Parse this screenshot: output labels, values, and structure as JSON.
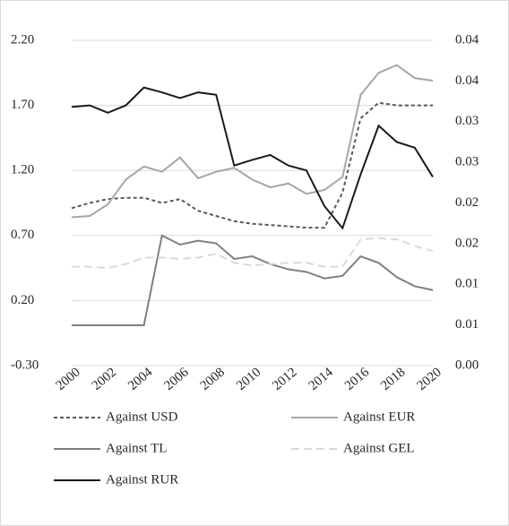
{
  "chart_data": {
    "type": "line",
    "categories": [
      "2000",
      null,
      "2002",
      null,
      "2004",
      null,
      "2006",
      null,
      "2008",
      null,
      "2010",
      null,
      "2012",
      null,
      "2014",
      null,
      "2016",
      null,
      "2018",
      null,
      "2020"
    ],
    "ylim": [
      -0.3,
      2.2
    ],
    "yticks": [
      {
        "value": 2.2,
        "label": "2.20"
      },
      {
        "value": 1.7,
        "label": "1.70"
      },
      {
        "value": 1.2,
        "label": "1.20"
      },
      {
        "value": 0.7,
        "label": "0.70"
      },
      {
        "value": 0.2,
        "label": "0.20"
      },
      {
        "value": -0.3,
        "label": "-0.30"
      }
    ],
    "y2lim": [
      0,
      0.04
    ],
    "y2ticks": [
      {
        "value": 0.04,
        "label": "0.04"
      },
      {
        "value": 0.035,
        "label": "0.04"
      },
      {
        "value": 0.03,
        "label": "0.03"
      },
      {
        "value": 0.025,
        "label": "0.03"
      },
      {
        "value": 0.02,
        "label": "0.02"
      },
      {
        "value": 0.015,
        "label": "0.02"
      },
      {
        "value": 0.01,
        "label": "0.01"
      },
      {
        "value": 0.005,
        "label": "0.01"
      },
      {
        "value": 0,
        "label": "0.00"
      }
    ],
    "grid": true,
    "legend": "bottom",
    "series": [
      {
        "name": "Against USD",
        "color": "#595959",
        "dash": "4,3",
        "values": [
          0.91,
          0.95,
          0.98,
          0.99,
          0.99,
          0.95,
          0.98,
          0.89,
          0.85,
          0.81,
          0.79,
          0.78,
          0.77,
          0.76,
          0.76,
          1.03,
          1.6,
          1.72,
          1.7,
          1.7,
          1.7
        ]
      },
      {
        "name": "Against EUR",
        "color": "#a6a6a6",
        "values": [
          0.84,
          0.85,
          0.94,
          1.13,
          1.23,
          1.19,
          1.3,
          1.14,
          1.19,
          1.22,
          1.13,
          1.07,
          1.1,
          1.02,
          1.05,
          1.15,
          1.78,
          1.95,
          2.01,
          1.91,
          1.89
        ]
      },
      {
        "name": "Against TL",
        "color": "#808080",
        "values": [
          0.01,
          0.01,
          0.01,
          0.01,
          0.01,
          0.7,
          0.63,
          0.66,
          0.64,
          0.52,
          0.54,
          0.48,
          0.44,
          0.42,
          0.37,
          0.39,
          0.54,
          0.49,
          0.38,
          0.31,
          0.28
        ]
      },
      {
        "name": "Against GEL",
        "color": "#d9d9d9",
        "dash": "9,5",
        "values": [
          0.46,
          0.46,
          0.45,
          0.48,
          0.53,
          0.53,
          0.52,
          0.53,
          0.56,
          0.49,
          0.47,
          0.48,
          0.49,
          0.49,
          0.46,
          0.46,
          0.67,
          0.68,
          0.67,
          0.62,
          0.58
        ]
      },
      {
        "name": "Against RUR",
        "color": "#1a1a1a",
        "axis": "y2",
        "values": [
          0.0318,
          0.032,
          0.0311,
          0.032,
          0.0342,
          0.0336,
          0.0329,
          0.0336,
          0.0333,
          0.0246,
          0.0253,
          0.0259,
          0.0246,
          0.024,
          0.0196,
          0.0169,
          0.0235,
          0.0295,
          0.0275,
          0.0268,
          0.0232
        ]
      }
    ]
  }
}
